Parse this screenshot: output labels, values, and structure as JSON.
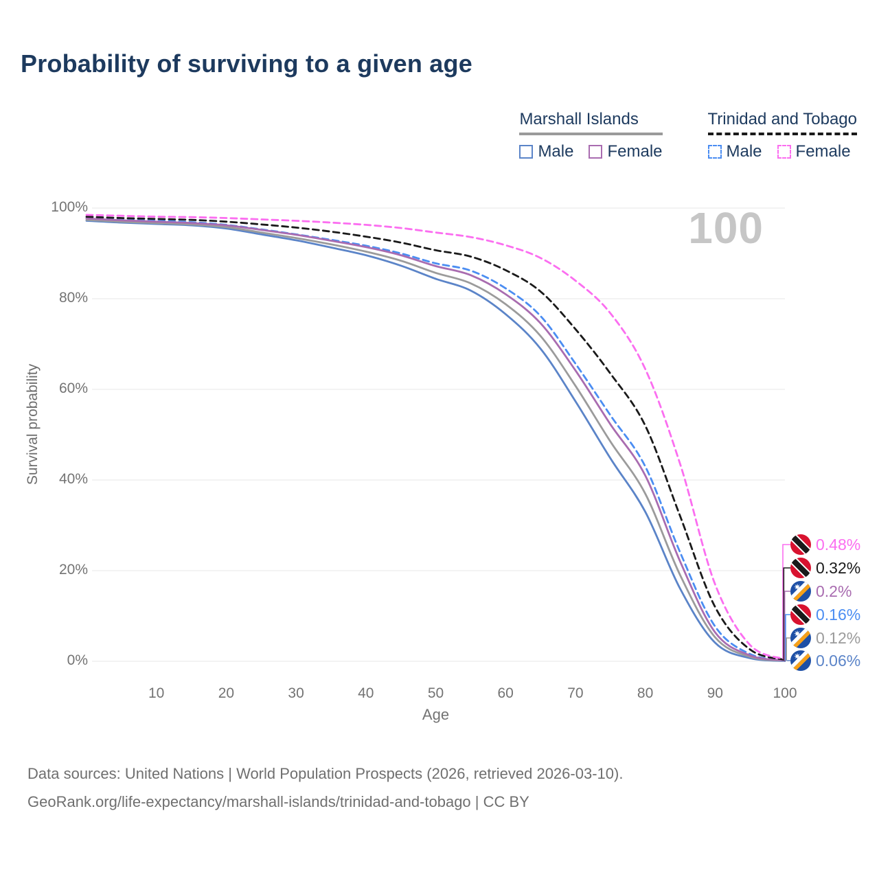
{
  "title": "Probability of surviving to a given age",
  "watermark": "100",
  "legend": {
    "groups": [
      {
        "name": "Marshall Islands",
        "underline_style": "solid",
        "underline_color": "#9a9a9a",
        "items": [
          {
            "label": "Male",
            "color": "#5b84c8",
            "style": "solid"
          },
          {
            "label": "Female",
            "color": "#a96cb0",
            "style": "solid"
          }
        ]
      },
      {
        "name": "Trinidad and Tobago",
        "underline_style": "dashed",
        "underline_color": "#1a1a1a",
        "items": [
          {
            "label": "Male",
            "color": "#4b8df2",
            "style": "dashed"
          },
          {
            "label": "Female",
            "color": "#fb6ef0",
            "style": "dashed"
          }
        ]
      }
    ]
  },
  "chart_data": {
    "type": "line",
    "title": "Probability of surviving to a given age",
    "xlabel": "Age",
    "ylabel": "Survival probability",
    "xlim": [
      0,
      100
    ],
    "ylim": [
      0,
      100
    ],
    "grid": true,
    "x_ticks": [
      {
        "label": "10",
        "value": 10
      },
      {
        "label": "20",
        "value": 20
      },
      {
        "label": "30",
        "value": 30
      },
      {
        "label": "40",
        "value": 40
      },
      {
        "label": "50",
        "value": 50
      },
      {
        "label": "60",
        "value": 60
      },
      {
        "label": "70",
        "value": 70
      },
      {
        "label": "80",
        "value": 80
      },
      {
        "label": "90",
        "value": 90
      },
      {
        "label": "100",
        "value": 100
      }
    ],
    "y_ticks": [
      {
        "label": "100%",
        "value": 100
      },
      {
        "label": "80%",
        "value": 80
      },
      {
        "label": "60%",
        "value": 60
      },
      {
        "label": "40%",
        "value": 40
      },
      {
        "label": "20%",
        "value": 20
      },
      {
        "label": "0%",
        "value": 0
      }
    ],
    "x": [
      0,
      5,
      10,
      15,
      20,
      25,
      30,
      35,
      40,
      45,
      50,
      55,
      60,
      65,
      70,
      75,
      80,
      85,
      90,
      95,
      100
    ],
    "series": [
      {
        "id": "tt_female",
        "name": "Trinidad and Tobago — Female",
        "color": "#fb6ef0",
        "dash": true,
        "flag": "TT",
        "end_label": "0.48%",
        "end_value": 0.48,
        "values": [
          98.5,
          98.3,
          98.1,
          98.0,
          97.8,
          97.5,
          97.2,
          96.8,
          96.3,
          95.6,
          94.6,
          93.6,
          91.8,
          89.0,
          84.0,
          76.8,
          64.5,
          43.5,
          17.0,
          3.6,
          0.48
        ]
      },
      {
        "id": "tt_combined",
        "name": "Trinidad and Tobago — Combined",
        "color": "#1a1a1a",
        "dash": true,
        "flag": "TT",
        "end_label": "0.32%",
        "end_value": 0.32,
        "values": [
          98.1,
          97.8,
          97.6,
          97.4,
          97.0,
          96.4,
          95.7,
          94.8,
          93.7,
          92.4,
          90.7,
          89.3,
          86.3,
          81.6,
          73.3,
          63.5,
          52.0,
          32.0,
          12.0,
          2.6,
          0.32
        ]
      },
      {
        "id": "mi_female",
        "name": "Marshall Islands — Female",
        "color": "#a96cb0",
        "dash": false,
        "flag": "MH",
        "end_label": "0.2%",
        "end_value": 0.2,
        "values": [
          97.7,
          97.3,
          97.0,
          96.7,
          96.2,
          95.2,
          94.1,
          92.8,
          91.4,
          89.6,
          87.2,
          85.2,
          81.0,
          74.6,
          64.2,
          52.3,
          41.0,
          22.0,
          6.4,
          1.3,
          0.2
        ]
      },
      {
        "id": "tt_male",
        "name": "Trinidad and Tobago — Male",
        "color": "#4b8df2",
        "dash": true,
        "flag": "TT",
        "end_label": "0.16%",
        "end_value": 0.16,
        "values": [
          97.8,
          97.4,
          97.2,
          96.9,
          96.3,
          95.3,
          94.2,
          93.0,
          91.7,
          90.0,
          87.8,
          86.2,
          82.3,
          76.2,
          65.7,
          54.3,
          43.0,
          24.0,
          7.7,
          1.6,
          0.16
        ]
      },
      {
        "id": "mi_combined",
        "name": "Marshall Islands — Combined",
        "color": "#9b9b9b",
        "dash": false,
        "flag": "MH",
        "end_label": "0.12%",
        "end_value": 0.12,
        "values": [
          97.4,
          97.0,
          96.7,
          96.4,
          95.8,
          94.6,
          93.4,
          92.0,
          90.4,
          88.4,
          85.7,
          83.4,
          78.8,
          71.8,
          60.8,
          48.5,
          37.0,
          19.0,
          5.3,
          1.0,
          0.12
        ]
      },
      {
        "id": "mi_male",
        "name": "Marshall Islands — Male",
        "color": "#5b84c8",
        "dash": false,
        "flag": "MH",
        "end_label": "0.06%",
        "end_value": 0.06,
        "values": [
          97.2,
          96.8,
          96.5,
          96.2,
          95.5,
          94.2,
          92.9,
          91.3,
          89.6,
          87.3,
          84.4,
          81.8,
          76.6,
          69.0,
          57.4,
          44.8,
          33.0,
          16.0,
          4.1,
          0.7,
          0.06
        ]
      }
    ],
    "flag_colors": {
      "TT": {
        "base": "#d8122f",
        "band_outer": "#ffffff",
        "band_inner": "#1a1a1a"
      },
      "MH": {
        "base": "#1d4fa6",
        "stripe_top": "#ffffff",
        "stripe_bottom": "#f7a018",
        "star": "#ffffff"
      }
    },
    "grid_color": "#ececec"
  },
  "footer": {
    "line1": "Data sources: United Nations | World Population Prospects (2026, retrieved 2026-03-10).",
    "line2": "GeoRank.org/life-expectancy/marshall-islands/trinidad-and-tobago | CC BY"
  }
}
